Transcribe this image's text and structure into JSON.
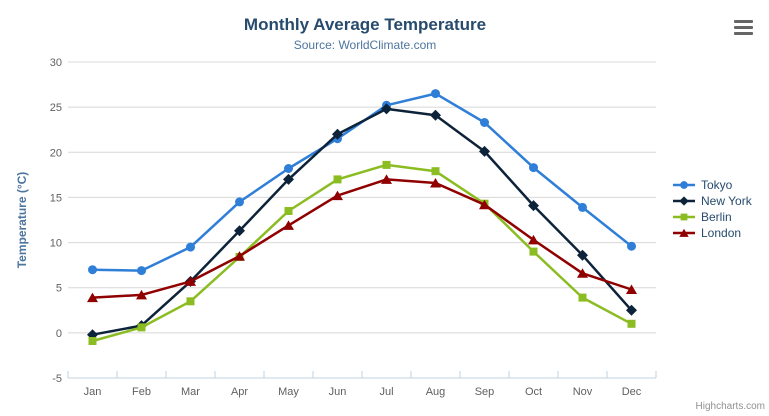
{
  "header": {
    "title": "Monthly Average Temperature",
    "subtitle": "Source: WorldClimate.com"
  },
  "credits": {
    "label": "Highcharts.com"
  },
  "theme": {
    "title_color": "#274b6d",
    "subtitle_color": "#4d759e",
    "y_axis_title_color": "#4d759e",
    "axis_label_color": "#606060",
    "grid_line_color": "#d8d8d8",
    "axis_line_color": "#c0d0e0",
    "legend_text_color": "#274b6d",
    "credits_color": "#909090",
    "menu_icon_color": "#666666"
  },
  "chart_data": {
    "type": "line",
    "title": "Monthly Average Temperature",
    "subtitle": "Source: WorldClimate.com",
    "xlabel": "",
    "ylabel": "Temperature (°C)",
    "ylim": [
      -5,
      30
    ],
    "ytick_step": 5,
    "grid": true,
    "legend_position": "right-middle",
    "categories": [
      "Jan",
      "Feb",
      "Mar",
      "Apr",
      "May",
      "Jun",
      "Jul",
      "Aug",
      "Sep",
      "Oct",
      "Nov",
      "Dec"
    ],
    "series": [
      {
        "name": "Tokyo",
        "color": "#2f7ed8",
        "marker": "circle",
        "values": [
          7.0,
          6.9,
          9.5,
          14.5,
          18.2,
          21.5,
          25.2,
          26.5,
          23.3,
          18.3,
          13.9,
          9.6
        ]
      },
      {
        "name": "New York",
        "color": "#0d233a",
        "marker": "diamond",
        "values": [
          -0.2,
          0.8,
          5.7,
          11.3,
          17.0,
          22.0,
          24.8,
          24.1,
          20.1,
          14.1,
          8.6,
          2.5
        ]
      },
      {
        "name": "Berlin",
        "color": "#8bbc21",
        "marker": "square",
        "values": [
          -0.9,
          0.6,
          3.5,
          8.4,
          13.5,
          17.0,
          18.6,
          17.9,
          14.3,
          9.0,
          3.9,
          1.0
        ]
      },
      {
        "name": "London",
        "color": "#910000",
        "marker": "triangle",
        "values": [
          3.9,
          4.2,
          5.7,
          8.5,
          11.9,
          15.2,
          17.0,
          16.6,
          14.2,
          10.3,
          6.6,
          4.8
        ]
      }
    ]
  }
}
